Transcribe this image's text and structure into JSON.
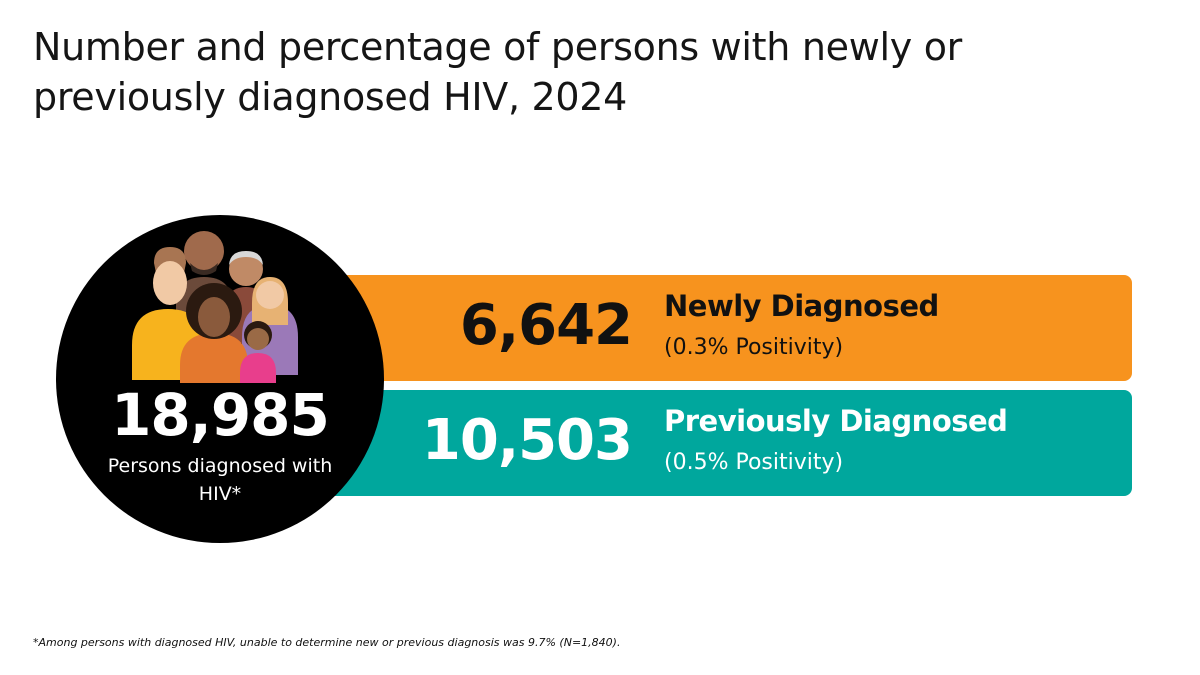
{
  "title": "Number and percentage of persons with newly or previously diagnosed HIV, 2024",
  "total": {
    "value": "18,985",
    "label": "Persons diagnosed with HIV*"
  },
  "categories": [
    {
      "id": "newly",
      "count": "6,642",
      "label": "Newly Diagnosed",
      "positivity": "(0.3% Positivity)",
      "color": "#f7931e"
    },
    {
      "id": "previously",
      "count": "10,503",
      "label": "Previously Diagnosed",
      "positivity": "(0.5% Positivity)",
      "color": "#00a79d"
    }
  ],
  "footnote": "*Among persons with diagnosed HIV, unable to determine new or previous diagnosis was 9.7% (N=1,840).",
  "icons": [
    "people-group-icon"
  ]
}
